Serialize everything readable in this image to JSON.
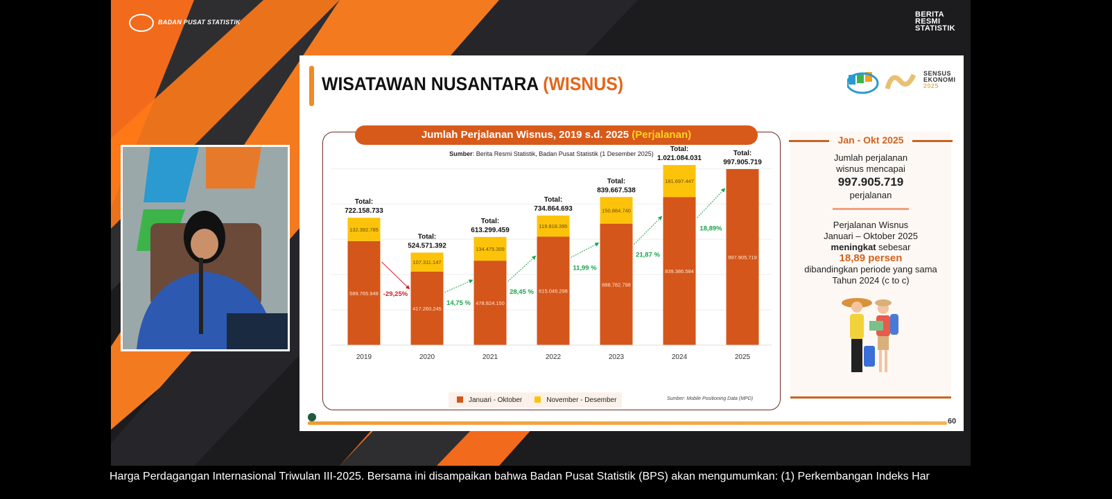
{
  "broadcast": {
    "org_logo_text": "BADAN PUSAT STATISTIK",
    "corner_logo_text": [
      "BERITA",
      "RESMI",
      "STATISTIK"
    ],
    "ticker": "Harga Perdagangan Internasional Triwulan III-2025.  Bersama ini disampaikan bahwa Badan Pusat Statistik (BPS) akan mengumumkan: (1) Perkembangan Indeks Har"
  },
  "slide": {
    "title_main": "WISATAWAN NUSANTARA ",
    "title_highlight": "(WISNUS)",
    "logo_text": [
      "SENSUS",
      "EKONOMI",
      "2025"
    ],
    "page_number": "60",
    "chart_header": "Jumlah Perjalanan Wisnus, 2019 s.d. 2025 ",
    "chart_header_highlight": "(Perjalanan)",
    "source_label": "Sumber",
    "source_text": ": Berita Resmi Statistik, Badan Pusat Statistik (1 Desember 2025)",
    "source_bottom": "Sumber: Mobile Positioning Data (MPD)",
    "panel": {
      "heading": "Jan - Okt 2025",
      "line1": "Jumlah perjalanan",
      "line2": "wisnus mencapai",
      "value": "997.905.719",
      "line3": "perjalanan",
      "p2_line1": "Perjalanan Wisnus",
      "p2_line2": "Januari – Oktober 2025",
      "p2_bold": "meningkat",
      "p2_rest": " sebesar",
      "p2_value": "18,89 persen",
      "p2_line4": "dibandingkan periode yang sama",
      "p2_line5": "Tahun 2024 (c to c)"
    }
  },
  "colors": {
    "jan_okt": "#d4561a",
    "nov_des": "#fcc30a",
    "growth_up": "#1aa54a",
    "growth_down": "#d0202a",
    "accent": "#e2661b"
  },
  "chart_data": {
    "type": "bar",
    "stacked": true,
    "categories": [
      "2019",
      "2020",
      "2021",
      "2022",
      "2023",
      "2024",
      "2025"
    ],
    "series": [
      {
        "name": "Januari - Oktober",
        "values": [
          589765948,
          417260245,
          478824150,
          615046298,
          688782798,
          839386584,
          997905719
        ],
        "labels": [
          "589.765.948",
          "417.260.245",
          "478.824.150",
          "615.046.298",
          "688.782.798",
          "839.386.584",
          "997.905.719"
        ]
      },
      {
        "name": "November - Desember",
        "values": [
          132392785,
          107311147,
          134475309,
          119818395,
          150884740,
          181697447,
          null
        ],
        "labels": [
          "132.392.785",
          "107.311.147",
          "134.475.309",
          "119.818.395",
          "150.884.740",
          "181.697.447",
          null
        ]
      }
    ],
    "total_prefix": "Total:",
    "totals": [
      "722.158.733",
      "524.571.392",
      "613.299.459",
      "734.864.693",
      "839.667.538",
      "1.021.084.031",
      "997.905.719"
    ],
    "growth": [
      "-29,25%",
      "14,75 %",
      "28,45 %",
      "11,99 %",
      "21,87 %",
      "18,89%"
    ],
    "ylim": [
      0,
      1100000000
    ],
    "grid": true,
    "legend": "bottom"
  }
}
